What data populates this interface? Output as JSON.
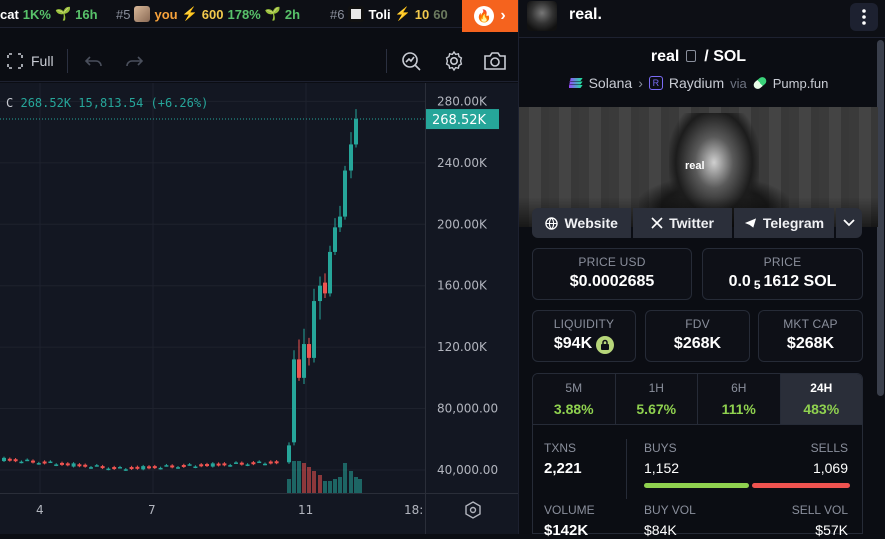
{
  "ticker": {
    "items": [
      {
        "rank": "",
        "name": "cat",
        "pct": "1K%",
        "age": "16h"
      },
      {
        "rank": "#5",
        "name": "you",
        "boost": "600",
        "pct": "178%",
        "age": "2h"
      },
      {
        "rank": "#6",
        "name": "Toli",
        "boost": "10",
        "pct": "60"
      }
    ]
  },
  "toolbar": {
    "full_label": "Full"
  },
  "chart_data": {
    "type": "candlestick",
    "legend": {
      "close_label": "C",
      "close": "268.52K",
      "change": "15,813.54 (+6.26%)"
    },
    "last_price_label": "268.52K",
    "y_ticks": [
      "280.00K",
      "240.00K",
      "200.00K",
      "160.00K",
      "120.00K",
      "80,000.00",
      "40,000.00"
    ],
    "y_tick_values": [
      280000,
      240000,
      200000,
      160000,
      120000,
      80000,
      40000
    ],
    "ylim": [
      25000,
      292000
    ],
    "x_ticks": [
      "4",
      "7",
      "11",
      "18:"
    ],
    "last_price": 268520,
    "colors": {
      "up": "#26a69a",
      "down": "#ef5350"
    }
  },
  "panel": {
    "token_name": "real.",
    "pair_base": "real",
    "pair_quote": "SOL",
    "chain": "Solana",
    "dex": "Raydium",
    "via": "via",
    "launchpad": "Pump.fun",
    "banner_text": "real",
    "socials": [
      "Website",
      "Twitter",
      "Telegram"
    ],
    "price_usd_label": "PRICE USD",
    "price_usd": "$0.0002685",
    "price_label": "PRICE",
    "price_sol_pre": "0.0",
    "price_sol_sub": "5",
    "price_sol_post": "1612 SOL",
    "liquidity_label": "LIQUIDITY",
    "liquidity": "$94K",
    "fdv_label": "FDV",
    "fdv": "$268K",
    "mktcap_label": "MKT CAP",
    "mktcap": "$268K",
    "timeframes": [
      {
        "label": "5M",
        "value": "3.88%"
      },
      {
        "label": "1H",
        "value": "5.67%"
      },
      {
        "label": "6H",
        "value": "111%"
      },
      {
        "label": "24H",
        "value": "483%"
      }
    ],
    "txns_label": "TXNS",
    "txns": "2,221",
    "buys_label": "BUYS",
    "buys": "1,152",
    "sells_label": "SELLS",
    "sells": "1,069",
    "buy_fraction": 0.519,
    "volume_label": "VOLUME",
    "volume": "$142K",
    "buy_vol_label": "BUY VOL",
    "buy_vol": "$84K",
    "sell_vol_label": "SELL VOL",
    "sell_vol": "$57K"
  }
}
